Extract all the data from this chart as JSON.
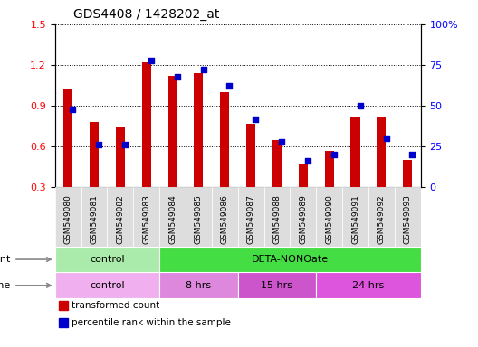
{
  "title": "GDS4408 / 1428202_at",
  "samples": [
    "GSM549080",
    "GSM549081",
    "GSM549082",
    "GSM549083",
    "GSM549084",
    "GSM549085",
    "GSM549086",
    "GSM549087",
    "GSM549088",
    "GSM549089",
    "GSM549090",
    "GSM549091",
    "GSM549092",
    "GSM549093"
  ],
  "transformed_count": [
    1.02,
    0.78,
    0.75,
    1.22,
    1.12,
    1.14,
    1.0,
    0.77,
    0.65,
    0.47,
    0.57,
    0.82,
    0.82,
    0.5
  ],
  "percentile_rank": [
    48,
    26,
    26,
    78,
    68,
    72,
    62,
    42,
    28,
    16,
    20,
    50,
    30,
    20
  ],
  "ylim_left": [
    0.3,
    1.5
  ],
  "ylim_right": [
    0,
    100
  ],
  "yticks_left": [
    0.3,
    0.6,
    0.9,
    1.2,
    1.5
  ],
  "yticks_right": [
    0,
    25,
    50,
    75,
    100
  ],
  "ytick_labels_right": [
    "0",
    "25",
    "50",
    "75",
    "100%"
  ],
  "bar_color": "#cc0000",
  "percentile_color": "#0000cc",
  "agent_groups": [
    {
      "label": "control",
      "start": 0,
      "end": 4,
      "color": "#aaeaaa"
    },
    {
      "label": "DETA-NONOate",
      "start": 4,
      "end": 14,
      "color": "#44dd44"
    }
  ],
  "time_groups": [
    {
      "label": "control",
      "start": 0,
      "end": 4,
      "color": "#f0b0f0"
    },
    {
      "label": "8 hrs",
      "start": 4,
      "end": 7,
      "color": "#dd88dd"
    },
    {
      "label": "15 hrs",
      "start": 7,
      "end": 10,
      "color": "#cc55cc"
    },
    {
      "label": "24 hrs",
      "start": 10,
      "end": 14,
      "color": "#dd55dd"
    }
  ],
  "legend_items": [
    {
      "label": "transformed count",
      "color": "#cc0000"
    },
    {
      "label": "percentile rank within the sample",
      "color": "#0000cc"
    }
  ],
  "bar_width": 0.35,
  "xtick_bg": "#dddddd"
}
